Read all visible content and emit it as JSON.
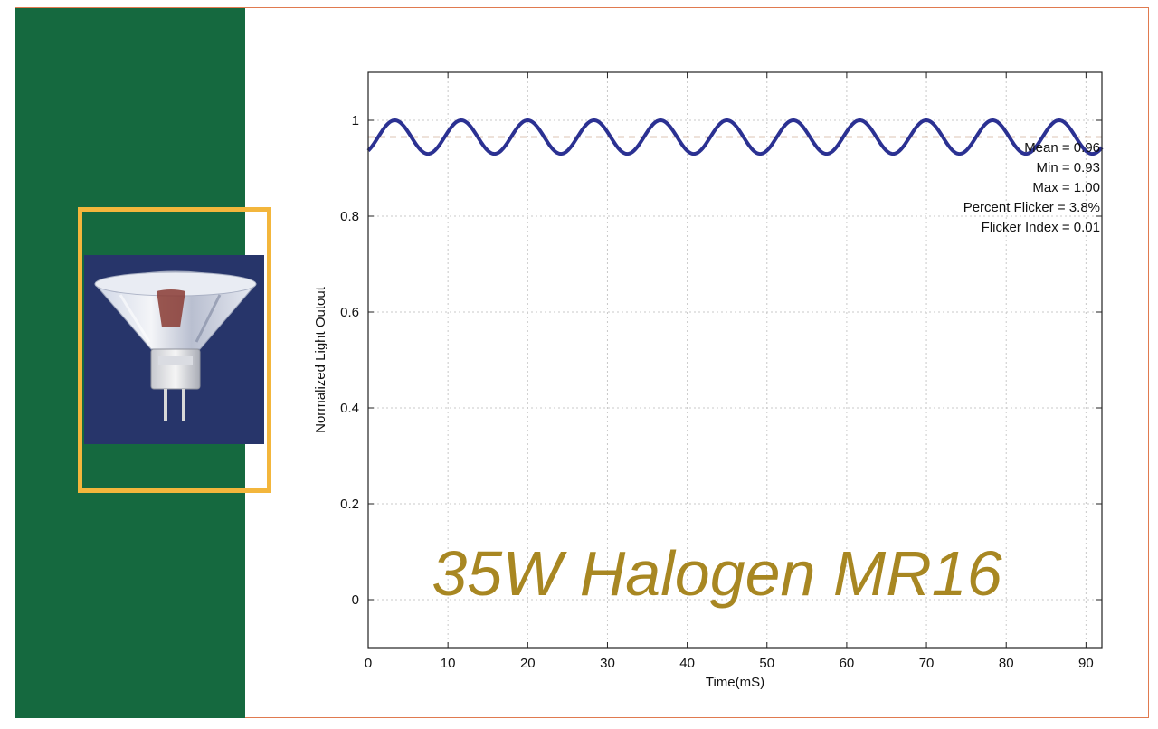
{
  "colors": {
    "panel": "#15693f",
    "highlight": "#f3b63c",
    "photo_bg": "#27356a",
    "series": "#2b3192",
    "mean_line": "#b98a6a",
    "title": "#a88722",
    "grid": "#c8c8c8"
  },
  "product_image": {
    "subject": "halogen-mr16-bulb"
  },
  "chart_data": {
    "type": "line",
    "title": "35W Halogen MR16",
    "xlabel": "Time(mS)",
    "ylabel": "Normalized Light Outout",
    "xlim": [
      0,
      92
    ],
    "ylim": [
      -0.1,
      1.1
    ],
    "xticks": [
      0,
      10,
      20,
      30,
      40,
      50,
      60,
      70,
      80,
      90
    ],
    "yticks": [
      0,
      0.2,
      0.4,
      0.6,
      0.8,
      1
    ],
    "ytick_labels": [
      "0",
      "0.2",
      "0.4",
      "0.6",
      "0.8",
      "1"
    ],
    "grid": true,
    "series": [
      {
        "kind": "waveform",
        "x_range": [
          0,
          92
        ],
        "period": 8.33,
        "max": 1.0,
        "min": 0.93,
        "phase_of_peak": 0.4
      }
    ],
    "reference_lines": [
      {
        "y": 0.965
      }
    ],
    "annotations": [
      "Mean = 0.96",
      "Min = 0.93",
      "Max = 1.00",
      "Percent Flicker = 3.8%",
      "Flicker Index = 0.01"
    ],
    "annotation_placement": "top-right"
  }
}
